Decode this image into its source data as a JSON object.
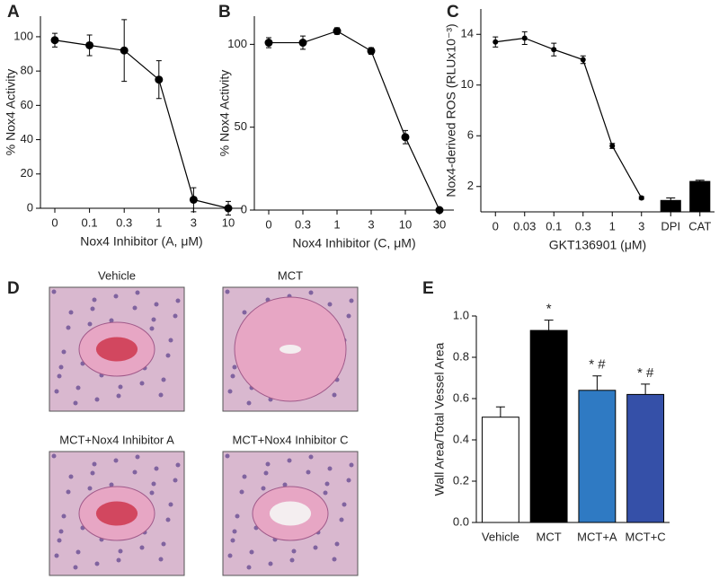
{
  "chart_data": [
    {
      "type": "line",
      "panel": "A",
      "xlabel": "Nox4 Inhibitor (A, μM)",
      "ylabel": "% Nox4 Activity",
      "categories": [
        "0",
        "0.1",
        "0.3",
        "1",
        "3",
        "10"
      ],
      "series": [
        {
          "type": "line",
          "color": "#000000",
          "values": [
            98,
            95,
            92,
            75,
            5,
            0
          ],
          "errors": [
            4,
            6,
            18,
            11,
            7,
            4
          ]
        }
      ],
      "ylim": [
        0,
        112
      ],
      "yticks": [
        0,
        20,
        40,
        60,
        80,
        100
      ]
    },
    {
      "type": "line",
      "panel": "B",
      "xlabel": "Nox4 Inhibitor (C, μM)",
      "ylabel": "% Nox4 Activity",
      "categories": [
        "0",
        "0.3",
        "1",
        "3",
        "10",
        "30"
      ],
      "series": [
        {
          "type": "line",
          "color": "#000000",
          "values": [
            101,
            101,
            108,
            96,
            44,
            0
          ],
          "errors": [
            3,
            4,
            2,
            2,
            4,
            1
          ]
        }
      ],
      "ylim": [
        0,
        117
      ],
      "yticks": [
        0,
        50,
        100
      ]
    },
    {
      "type": "combo",
      "panel": "C",
      "xlabel": "GKT136901 (μM)",
      "ylabel": "Nox4-derived ROS (RLUx10⁻³)",
      "categories": [
        "0",
        "0.03",
        "0.1",
        "0.3",
        "1",
        "3",
        "DPI",
        "CAT"
      ],
      "series": [
        {
          "type": "line",
          "color": "#000000",
          "values": [
            13.4,
            13.7,
            12.8,
            12.0,
            5.2,
            1.1,
            null,
            null
          ],
          "errors": [
            0.4,
            0.5,
            0.5,
            0.3,
            0.2,
            0.1,
            null,
            null
          ]
        },
        {
          "type": "bar",
          "color": "#000000",
          "values": [
            null,
            null,
            null,
            null,
            null,
            null,
            0.9,
            2.4
          ],
          "errors": [
            null,
            null,
            null,
            null,
            null,
            null,
            0.2,
            0.1
          ]
        }
      ],
      "ylim": [
        0,
        16
      ],
      "yticks": [
        2,
        6,
        10,
        14
      ]
    },
    {
      "type": "bar",
      "panel": "E",
      "ylabel": "Wall Area/Total Vessel Area",
      "categories": [
        "Vehicle",
        "MCT",
        "MCT+A",
        "MCT+C"
      ],
      "series": [
        {
          "type": "bar",
          "colors": [
            "#ffffff",
            "#000000",
            "#2f7ac3",
            "#3550a8"
          ],
          "values": [
            0.51,
            0.93,
            0.64,
            0.62
          ],
          "errors": [
            0.05,
            0.05,
            0.07,
            0.05
          ]
        }
      ],
      "annotations": [
        null,
        "*",
        "* #",
        "* #"
      ],
      "ylim": [
        0,
        1.0
      ],
      "yticks": [
        {
          "value": 0,
          "label": "0.0"
        },
        0.2,
        0.4,
        0.6,
        0.8,
        {
          "value": 1,
          "label": "1.0"
        }
      ]
    }
  ],
  "histology": {
    "panel": "D",
    "images": [
      {
        "title": "Vehicle"
      },
      {
        "title": "MCT"
      },
      {
        "title": "MCT+Nox4 Inhibitor A"
      },
      {
        "title": "MCT+Nox4 Inhibitor C"
      }
    ]
  }
}
